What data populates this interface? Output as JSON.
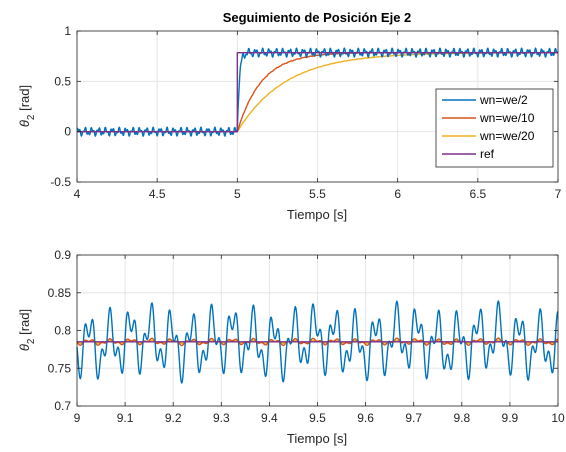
{
  "colors": {
    "wn_we_2": "#0072BD",
    "wn_we_10": "#D95319",
    "wn_we_20": "#EDB120",
    "ref": "#7E2F8E",
    "grid": "#e6e6e6",
    "axis": "#262626"
  },
  "chart_data": [
    {
      "type": "line",
      "title": "Seguimiento de Posición Eje 2",
      "xlabel": "Tiempo [s]",
      "ylabel": "θ",
      "ylabel_sub": "2",
      "ylabel_unit": " [rad]",
      "xlim": [
        4,
        7
      ],
      "ylim": [
        -0.5,
        1
      ],
      "xticks": [
        4,
        4.5,
        5,
        5.5,
        6,
        6.5,
        7
      ],
      "xtick_labels": [
        "4",
        "4.5",
        "5",
        "5.5",
        "6",
        "6.5",
        "7"
      ],
      "yticks": [
        -0.5,
        0,
        0.5,
        1
      ],
      "ytick_labels": [
        "-0.5",
        "0",
        "0.5",
        "1"
      ],
      "grid": true,
      "legend_position": "lower-right",
      "step_time": 5,
      "ref_value": 0.785,
      "series": [
        {
          "name": "wn=we/2",
          "color_key": "wn_we_2",
          "tau": 0.012,
          "oscillation_amplitude": 0.045
        },
        {
          "name": "wn=we/10",
          "color_key": "wn_we_10",
          "tau": 0.15,
          "oscillation_amplitude": 0.004
        },
        {
          "name": "wn=we/20",
          "color_key": "wn_we_20",
          "tau": 0.3,
          "oscillation_amplitude": 0.002
        },
        {
          "name": "ref",
          "color_key": "ref"
        }
      ]
    },
    {
      "type": "line",
      "title": "",
      "xlabel": "Tiempo [s]",
      "ylabel": "θ",
      "ylabel_sub": "2",
      "ylabel_unit": " [rad]",
      "xlim": [
        9,
        10
      ],
      "ylim": [
        0.7,
        0.9
      ],
      "xticks": [
        9,
        9.1,
        9.2,
        9.3,
        9.4,
        9.5,
        9.6,
        9.7,
        9.8,
        9.9,
        10
      ],
      "xtick_labels": [
        "9",
        "9.1",
        "9.2",
        "9.3",
        "9.4",
        "9.5",
        "9.6",
        "9.7",
        "9.8",
        "9.9",
        "10"
      ],
      "yticks": [
        0.7,
        0.75,
        0.8,
        0.85,
        0.9
      ],
      "ytick_labels": [
        "0.7",
        "0.75",
        "0.8",
        "0.85",
        "0.9"
      ],
      "grid": true,
      "legend_position": "none",
      "ref_value": 0.785,
      "series": [
        {
          "name": "wn=we/2",
          "color_key": "wn_we_2",
          "oscillation_amplitude": 0.055
        },
        {
          "name": "wn=we/10",
          "color_key": "wn_we_10",
          "oscillation_amplitude": 0.005
        },
        {
          "name": "wn=we/20",
          "color_key": "wn_we_20",
          "oscillation_amplitude": 0.002
        },
        {
          "name": "ref",
          "color_key": "ref"
        }
      ]
    }
  ]
}
